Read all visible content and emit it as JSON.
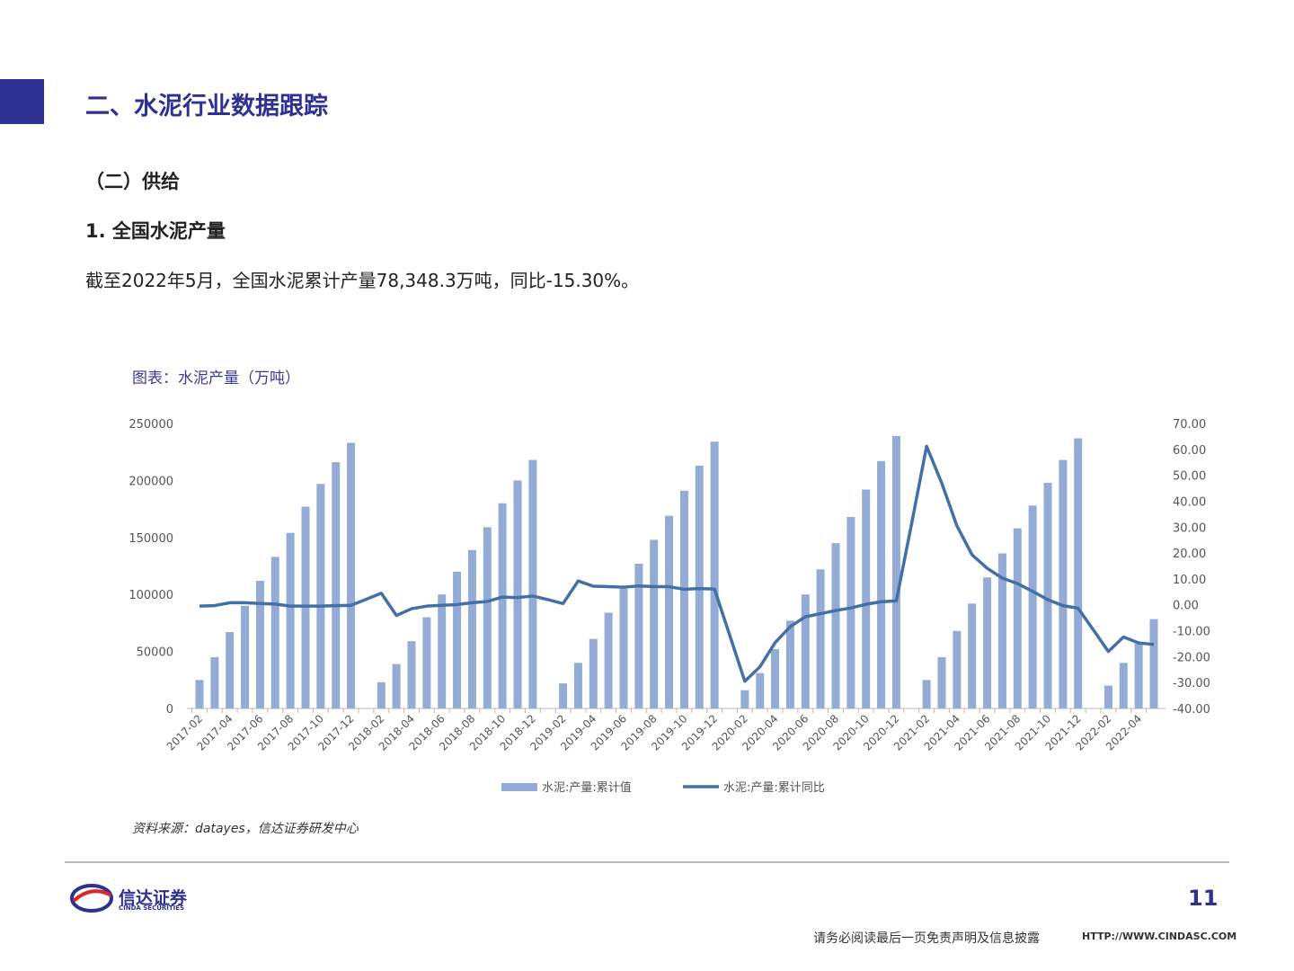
{
  "header": {
    "title": "二、水泥行业数据跟踪"
  },
  "section": "（二）供给",
  "subsection": "1. 全国水泥产量",
  "paragraph": "截至2022年5月，全国水泥累计产量78,348.3万吨，同比-15.30%。",
  "chart_caption": "图表：水泥产量（万吨）",
  "source": "资料来源：datayes，信达证券研发中心",
  "logo": {
    "name": "信达证券",
    "name_en": "CINDA SECURITIES"
  },
  "page_number": "11",
  "footer": {
    "disclaimer": "请务必阅读最后一页免责声明及信息披露",
    "url": "HTTP://WWW.CINDASC.COM"
  },
  "chart_data": {
    "type": "combo",
    "categories": [
      "2017-02",
      null,
      "2017-04",
      null,
      "2017-06",
      null,
      "2017-08",
      null,
      "2017-10",
      null,
      "2017-12",
      null,
      "2018-02",
      null,
      "2018-04",
      null,
      "2018-06",
      null,
      "2018-08",
      null,
      "2018-10",
      null,
      "2018-12",
      null,
      "2019-02",
      null,
      "2019-04",
      null,
      "2019-06",
      null,
      "2019-08",
      null,
      "2019-10",
      null,
      "2019-12",
      null,
      "2020-02",
      null,
      "2020-04",
      null,
      "2020-06",
      null,
      "2020-08",
      null,
      "2020-10",
      null,
      "2020-12",
      null,
      "2021-02",
      null,
      "2021-04",
      null,
      "2021-06",
      null,
      "2021-08",
      null,
      "2021-10",
      null,
      "2021-12",
      null,
      "2022-02",
      null,
      "2022-04",
      null
    ],
    "series": [
      {
        "name": "水泥:产量:累计值",
        "type": "bar",
        "color": "#94abd5",
        "values": [
          25000,
          45000,
          67000,
          90000,
          112000,
          133000,
          154000,
          177000,
          197000,
          216000,
          233000,
          null,
          23000,
          39000,
          59000,
          80000,
          100000,
          120000,
          139000,
          159000,
          180000,
          200000,
          218000,
          null,
          22000,
          40000,
          61000,
          84000,
          105000,
          127000,
          148000,
          169000,
          191000,
          213000,
          234000,
          null,
          16000,
          31000,
          52000,
          77000,
          100000,
          122000,
          145000,
          168000,
          192000,
          217000,
          239000,
          null,
          25000,
          45000,
          68000,
          92000,
          115000,
          136000,
          158000,
          178000,
          198000,
          218000,
          237000,
          null,
          20000,
          40000,
          57000,
          78348.3
        ]
      },
      {
        "name": "水泥:产量:累计同比",
        "type": "line",
        "axis": "y2",
        "color": "#4570a6",
        "values": [
          -0.5,
          -0.3,
          0.8,
          0.8,
          0.5,
          0.3,
          -0.5,
          -0.5,
          -0.5,
          -0.3,
          -0.2,
          2.1,
          4.5,
          -4.1,
          -1.5,
          -0.5,
          -0.2,
          0.1,
          0.8,
          1.3,
          3,
          2.8,
          3.4,
          2,
          0.5,
          9.2,
          7.2,
          7,
          6.8,
          7.3,
          7,
          7,
          6,
          6.3,
          6.1,
          -11.7,
          -29.5,
          -23.9,
          -14.6,
          -8.4,
          -4.6,
          -3.4,
          -2.2,
          -1.2,
          0.2,
          1.2,
          1.5,
          31,
          61.2,
          47,
          30.5,
          19.3,
          14.1,
          10.3,
          8.2,
          5.2,
          2,
          -0.3,
          -1.3,
          -9.6,
          -18,
          -12.4,
          -14.7,
          -15.3
        ]
      }
    ],
    "ylim": [
      0,
      250000
    ],
    "yticks": [
      0,
      50000,
      100000,
      150000,
      200000,
      250000
    ],
    "y2lim": [
      -40,
      70
    ],
    "y2ticks": [
      {
        "value": -40,
        "label": "-40.00"
      },
      {
        "value": -30,
        "label": "-30.00"
      },
      {
        "value": -20,
        "label": "-20.00"
      },
      {
        "value": -10,
        "label": "-10.00"
      },
      {
        "value": 0,
        "label": "0.00"
      },
      {
        "value": 10,
        "label": "10.00"
      },
      {
        "value": 20,
        "label": "20.00"
      },
      {
        "value": 30,
        "label": "30.00"
      },
      {
        "value": 40,
        "label": "40.00"
      },
      {
        "value": 50,
        "label": "50.00"
      },
      {
        "value": 60,
        "label": "60.00"
      },
      {
        "value": 70,
        "label": "70.00"
      }
    ],
    "legend": "bottom",
    "grid": false
  }
}
